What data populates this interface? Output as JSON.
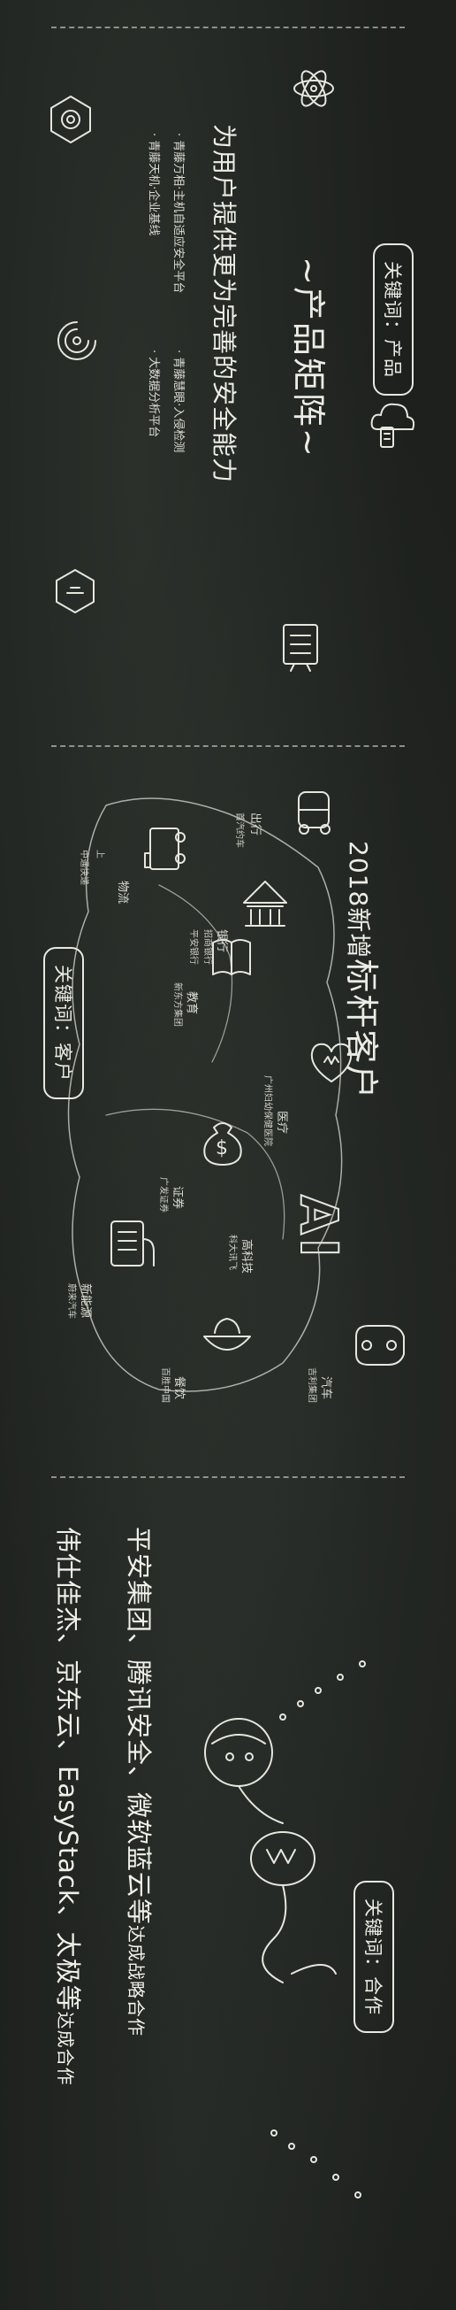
{
  "sections": {
    "product": {
      "keyword": "关键词：产品",
      "title": "~产品矩阵~",
      "subtitle": "为用户提供更为完善的安全能力",
      "bullets": [
        "· 青藤万相·主机自适应安全平台",
        "· 青藤慧眼·入侵检测",
        "· 青藤天机·企业基线",
        "· 大数据分析平台"
      ]
    },
    "clients": {
      "keyword": "关键词：客户",
      "title_prefix": "2018新增",
      "title_emph": "标杆客户",
      "items": [
        {
          "category": "出行",
          "client": "首汽约车"
        },
        {
          "category": "物流",
          "client": "上汽物流集团\n中通快递"
        },
        {
          "category": "银行",
          "client": "招商银行\n平安银行"
        },
        {
          "category": "教育",
          "client": "新东方集团"
        },
        {
          "category": "医疗",
          "client": "广州妇幼保健医院"
        },
        {
          "category": "证券",
          "client": "广发证券"
        },
        {
          "category": "高科技",
          "client": "科大讯飞"
        },
        {
          "category": "新能源",
          "client": "蔚来汽车"
        },
        {
          "category": "餐饮",
          "client": "百胜中国"
        },
        {
          "category": "汽车",
          "client": "吉利集团"
        }
      ],
      "ai_glyph": "AI",
      "dollar_glyph": "$"
    },
    "partners": {
      "keyword": "关键词：合作",
      "line1": "平安集团、腾讯安全、微软蓝云等",
      "line1_tail": "达成战略合作",
      "line2": "伟仕佳杰、京东云、EasyStack、太极等",
      "line2_tail": "达成合作"
    }
  }
}
